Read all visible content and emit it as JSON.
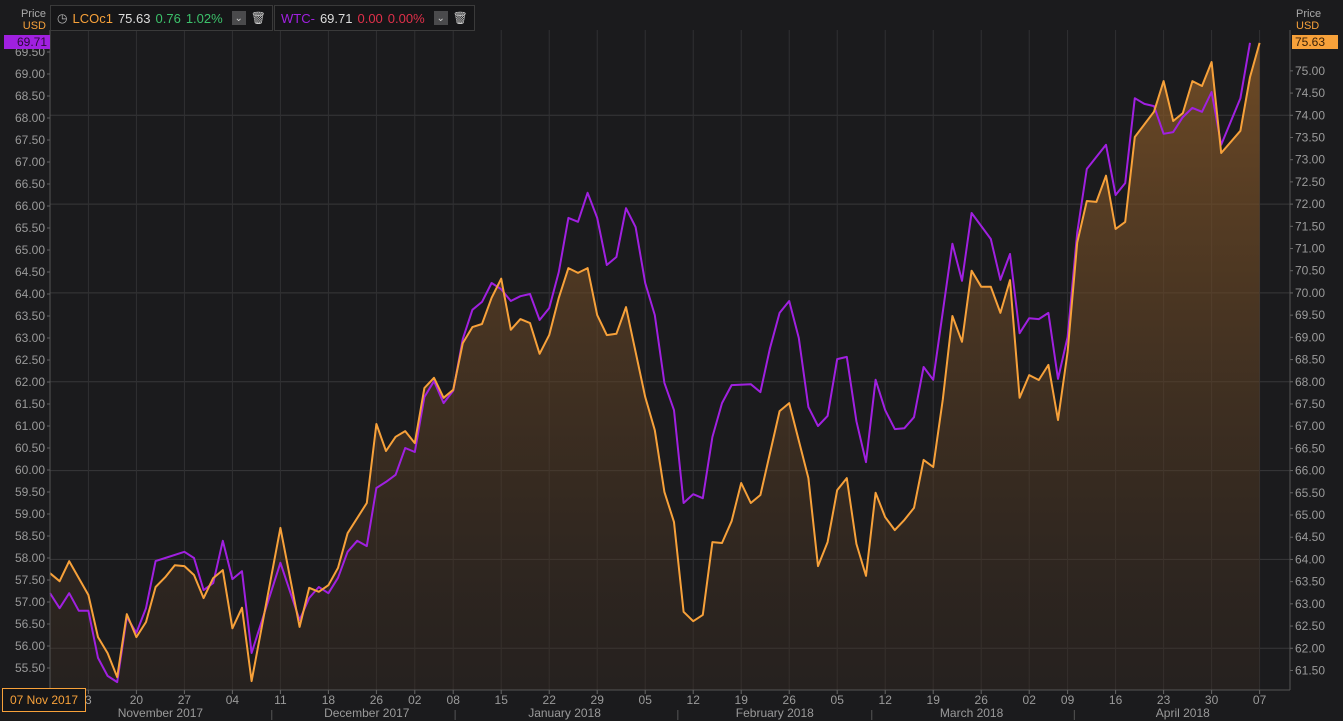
{
  "header": {
    "price_label": "Price",
    "currency_label": "USD",
    "crosshair_date": "07 Nov 2017"
  },
  "legend": [
    {
      "symbol": "LCOc1",
      "last": "75.63",
      "change": "0.76",
      "pct": "1.02%",
      "color": "#f7a13a",
      "change_color": "#3cc06a"
    },
    {
      "symbol": "WTC-",
      "last": "69.71",
      "change": "0.00",
      "pct": "0.00%",
      "color": "#a020e0",
      "change_color": "#e0304a"
    }
  ],
  "chart_data": {
    "type": "line",
    "title": "",
    "xlabel": "",
    "x_unit": "trading day offset from 07 Nov 2017",
    "xlim": [
      0,
      129
    ],
    "left_axis": {
      "label": "Price USD",
      "ylim": [
        55.0,
        70.0
      ],
      "ticks": [
        "55.50",
        "56.00",
        "56.50",
        "57.00",
        "57.50",
        "58.00",
        "58.50",
        "59.00",
        "59.50",
        "60.00",
        "60.50",
        "61.00",
        "61.50",
        "62.00",
        "62.50",
        "63.00",
        "63.50",
        "64.00",
        "64.50",
        "65.00",
        "65.50",
        "66.00",
        "66.50",
        "67.00",
        "67.50",
        "68.00",
        "68.50",
        "69.00",
        "69.50"
      ],
      "last_tag": "69.71"
    },
    "right_axis": {
      "label": "Price USD",
      "ylim": [
        61.06,
        75.92
      ],
      "ticks": [
        "61.50",
        "62.00",
        "62.50",
        "63.00",
        "63.50",
        "64.00",
        "64.50",
        "65.00",
        "65.50",
        "66.00",
        "66.50",
        "67.00",
        "67.50",
        "68.00",
        "68.50",
        "69.00",
        "69.50",
        "70.00",
        "70.50",
        "71.00",
        "71.50",
        "72.00",
        "72.50",
        "73.00",
        "73.50",
        "74.00",
        "74.50",
        "75.00"
      ],
      "last_tag": "75.63"
    },
    "x_ticks": [
      {
        "d": 4,
        "label": "3"
      },
      {
        "d": 9,
        "label": "20"
      },
      {
        "d": 14,
        "label": "27"
      },
      {
        "d": 19,
        "label": "04"
      },
      {
        "d": 24,
        "label": "11"
      },
      {
        "d": 29,
        "label": "18"
      },
      {
        "d": 34,
        "label": "26"
      },
      {
        "d": 38,
        "label": "02"
      },
      {
        "d": 42,
        "label": "08"
      },
      {
        "d": 47,
        "label": "15"
      },
      {
        "d": 52,
        "label": "22"
      },
      {
        "d": 57,
        "label": "29"
      },
      {
        "d": 62,
        "label": "05"
      },
      {
        "d": 67,
        "label": "12"
      },
      {
        "d": 72,
        "label": "19"
      },
      {
        "d": 77,
        "label": "26"
      },
      {
        "d": 82,
        "label": "05"
      },
      {
        "d": 87,
        "label": "12"
      },
      {
        "d": 92,
        "label": "19"
      },
      {
        "d": 97,
        "label": "26"
      },
      {
        "d": 102,
        "label": "02"
      },
      {
        "d": 106,
        "label": "09"
      },
      {
        "d": 111,
        "label": "16"
      },
      {
        "d": 116,
        "label": "23"
      },
      {
        "d": 121,
        "label": "30"
      },
      {
        "d": 126,
        "label": "07"
      }
    ],
    "months": [
      {
        "d": 11.5,
        "label": "November 2017"
      },
      {
        "d": 33,
        "label": "December 2017"
      },
      {
        "d": 53.6,
        "label": "January 2018"
      },
      {
        "d": 75.5,
        "label": "February 2018"
      },
      {
        "d": 96,
        "label": "March 2018"
      },
      {
        "d": 118,
        "label": "April 2018"
      }
    ],
    "grid": true,
    "series": [
      {
        "name": "LCOc1",
        "axis": "right",
        "color": "#f7a13a",
        "fill": true,
        "points": [
          [
            0,
            63.69
          ],
          [
            1,
            63.51
          ],
          [
            2,
            63.96
          ],
          [
            4,
            63.2
          ],
          [
            5,
            62.25
          ],
          [
            6,
            61.89
          ],
          [
            7,
            61.35
          ],
          [
            8,
            62.77
          ],
          [
            9,
            62.25
          ],
          [
            10,
            62.59
          ],
          [
            11,
            63.38
          ],
          [
            12,
            63.6
          ],
          [
            13,
            63.87
          ],
          [
            14,
            63.85
          ],
          [
            15,
            63.65
          ],
          [
            16,
            63.13
          ],
          [
            17,
            63.58
          ],
          [
            18,
            63.76
          ],
          [
            19,
            62.45
          ],
          [
            20,
            62.91
          ],
          [
            21,
            61.26
          ],
          [
            24,
            64.71
          ],
          [
            26,
            62.48
          ],
          [
            27,
            63.36
          ],
          [
            28,
            63.27
          ],
          [
            29,
            63.42
          ],
          [
            30,
            63.81
          ],
          [
            31,
            64.59
          ],
          [
            33,
            65.27
          ],
          [
            34,
            67.05
          ],
          [
            35,
            66.44
          ],
          [
            36,
            66.76
          ],
          [
            37,
            66.89
          ],
          [
            38,
            66.62
          ],
          [
            39,
            67.86
          ],
          [
            40,
            68.09
          ],
          [
            41,
            67.64
          ],
          [
            42,
            67.82
          ],
          [
            43,
            68.87
          ],
          [
            44,
            69.23
          ],
          [
            45,
            69.3
          ],
          [
            46,
            69.89
          ],
          [
            47,
            70.32
          ],
          [
            48,
            69.17
          ],
          [
            49,
            69.41
          ],
          [
            50,
            69.32
          ],
          [
            51,
            68.63
          ],
          [
            52,
            69.05
          ],
          [
            53,
            69.89
          ],
          [
            54,
            70.56
          ],
          [
            55,
            70.45
          ],
          [
            56,
            70.56
          ],
          [
            57,
            69.5
          ],
          [
            58,
            69.05
          ],
          [
            59,
            69.08
          ],
          [
            60,
            69.68
          ],
          [
            62,
            67.66
          ],
          [
            63,
            66.91
          ],
          [
            64,
            65.52
          ],
          [
            65,
            64.84
          ],
          [
            66,
            62.82
          ],
          [
            67,
            62.61
          ],
          [
            68,
            62.75
          ],
          [
            69,
            64.39
          ],
          [
            70,
            64.37
          ],
          [
            71,
            64.86
          ],
          [
            72,
            65.72
          ],
          [
            73,
            65.27
          ],
          [
            74,
            65.45
          ],
          [
            76,
            67.34
          ],
          [
            77,
            67.52
          ],
          [
            79,
            65.83
          ],
          [
            80,
            63.85
          ],
          [
            81,
            64.39
          ],
          [
            82,
            65.56
          ],
          [
            83,
            65.83
          ],
          [
            84,
            64.35
          ],
          [
            85,
            63.63
          ],
          [
            86,
            65.5
          ],
          [
            87,
            64.95
          ],
          [
            88,
            64.66
          ],
          [
            89,
            64.89
          ],
          [
            90,
            65.16
          ],
          [
            91,
            66.24
          ],
          [
            92,
            66.08
          ],
          [
            93,
            67.6
          ],
          [
            94,
            69.48
          ],
          [
            95,
            68.9
          ],
          [
            96,
            70.5
          ],
          [
            97,
            70.14
          ],
          [
            98,
            70.14
          ],
          [
            99,
            69.55
          ],
          [
            100,
            70.29
          ],
          [
            101,
            67.64
          ],
          [
            102,
            68.15
          ],
          [
            103,
            68.04
          ],
          [
            104,
            68.38
          ],
          [
            105,
            67.14
          ],
          [
            106,
            68.67
          ],
          [
            107,
            71.13
          ],
          [
            108,
            72.07
          ],
          [
            109,
            72.05
          ],
          [
            110,
            72.64
          ],
          [
            111,
            71.44
          ],
          [
            112,
            71.6
          ],
          [
            113,
            73.51
          ],
          [
            115,
            74.08
          ],
          [
            116,
            74.77
          ],
          [
            117,
            73.87
          ],
          [
            118,
            74.05
          ],
          [
            119,
            74.77
          ],
          [
            120,
            74.66
          ],
          [
            121,
            75.2
          ],
          [
            122,
            73.15
          ],
          [
            124,
            73.65
          ],
          [
            125,
            74.86
          ],
          [
            126,
            75.63
          ]
        ]
      },
      {
        "name": "WTC-",
        "axis": "left",
        "color": "#a020e0",
        "fill": false,
        "points": [
          [
            0,
            57.2
          ],
          [
            1,
            56.86
          ],
          [
            2,
            57.2
          ],
          [
            3,
            56.8
          ],
          [
            4,
            56.8
          ],
          [
            5,
            55.73
          ],
          [
            6,
            55.32
          ],
          [
            7,
            55.18
          ],
          [
            8,
            56.66
          ],
          [
            9,
            56.3
          ],
          [
            10,
            56.86
          ],
          [
            11,
            57.93
          ],
          [
            12,
            58.0
          ],
          [
            14,
            58.14
          ],
          [
            15,
            58.0
          ],
          [
            16,
            57.27
          ],
          [
            17,
            57.43
          ],
          [
            18,
            58.39
          ],
          [
            19,
            57.52
          ],
          [
            20,
            57.7
          ],
          [
            21,
            55.84
          ],
          [
            24,
            57.89
          ],
          [
            26,
            56.59
          ],
          [
            27,
            57.09
          ],
          [
            28,
            57.34
          ],
          [
            29,
            57.2
          ],
          [
            30,
            57.55
          ],
          [
            31,
            58.14
          ],
          [
            32,
            58.39
          ],
          [
            33,
            58.27
          ],
          [
            34,
            59.59
          ],
          [
            35,
            59.73
          ],
          [
            36,
            59.89
          ],
          [
            37,
            60.5
          ],
          [
            38,
            60.41
          ],
          [
            39,
            61.66
          ],
          [
            40,
            62.02
          ],
          [
            41,
            61.52
          ],
          [
            42,
            61.8
          ],
          [
            43,
            62.98
          ],
          [
            44,
            63.64
          ],
          [
            45,
            63.82
          ],
          [
            46,
            64.25
          ],
          [
            47,
            64.11
          ],
          [
            48,
            63.84
          ],
          [
            49,
            63.95
          ],
          [
            50,
            64.0
          ],
          [
            51,
            63.41
          ],
          [
            52,
            63.68
          ],
          [
            53,
            64.5
          ],
          [
            54,
            65.73
          ],
          [
            55,
            65.64
          ],
          [
            56,
            66.3
          ],
          [
            57,
            65.73
          ],
          [
            58,
            64.66
          ],
          [
            59,
            64.84
          ],
          [
            60,
            65.95
          ],
          [
            61,
            65.52
          ],
          [
            62,
            64.25
          ],
          [
            63,
            63.52
          ],
          [
            64,
            61.98
          ],
          [
            65,
            61.36
          ],
          [
            66,
            59.25
          ],
          [
            67,
            59.45
          ],
          [
            68,
            59.36
          ],
          [
            69,
            60.75
          ],
          [
            70,
            61.52
          ],
          [
            71,
            61.93
          ],
          [
            73,
            61.95
          ],
          [
            74,
            61.77
          ],
          [
            75,
            62.77
          ],
          [
            76,
            63.57
          ],
          [
            77,
            63.84
          ],
          [
            78,
            63.0
          ],
          [
            79,
            61.43
          ],
          [
            80,
            61.0
          ],
          [
            81,
            61.23
          ],
          [
            82,
            62.52
          ],
          [
            83,
            62.57
          ],
          [
            84,
            61.11
          ],
          [
            85,
            60.18
          ],
          [
            86,
            62.05
          ],
          [
            87,
            61.36
          ],
          [
            88,
            60.93
          ],
          [
            89,
            60.95
          ],
          [
            90,
            61.2
          ],
          [
            91,
            62.34
          ],
          [
            92,
            62.05
          ],
          [
            94,
            65.14
          ],
          [
            95,
            64.3
          ],
          [
            96,
            65.84
          ],
          [
            98,
            65.25
          ],
          [
            99,
            64.32
          ],
          [
            100,
            64.91
          ],
          [
            101,
            63.11
          ],
          [
            102,
            63.45
          ],
          [
            103,
            63.43
          ],
          [
            104,
            63.57
          ],
          [
            105,
            62.07
          ],
          [
            106,
            63.02
          ],
          [
            107,
            65.39
          ],
          [
            108,
            66.84
          ],
          [
            110,
            67.39
          ],
          [
            111,
            66.25
          ],
          [
            112,
            66.52
          ],
          [
            113,
            68.45
          ],
          [
            114,
            68.32
          ],
          [
            115,
            68.27
          ],
          [
            116,
            67.64
          ],
          [
            117,
            67.68
          ],
          [
            118,
            68.02
          ],
          [
            119,
            68.23
          ],
          [
            120,
            68.14
          ],
          [
            121,
            68.59
          ],
          [
            122,
            67.39
          ],
          [
            124,
            68.45
          ],
          [
            125,
            69.71
          ]
        ]
      }
    ]
  }
}
